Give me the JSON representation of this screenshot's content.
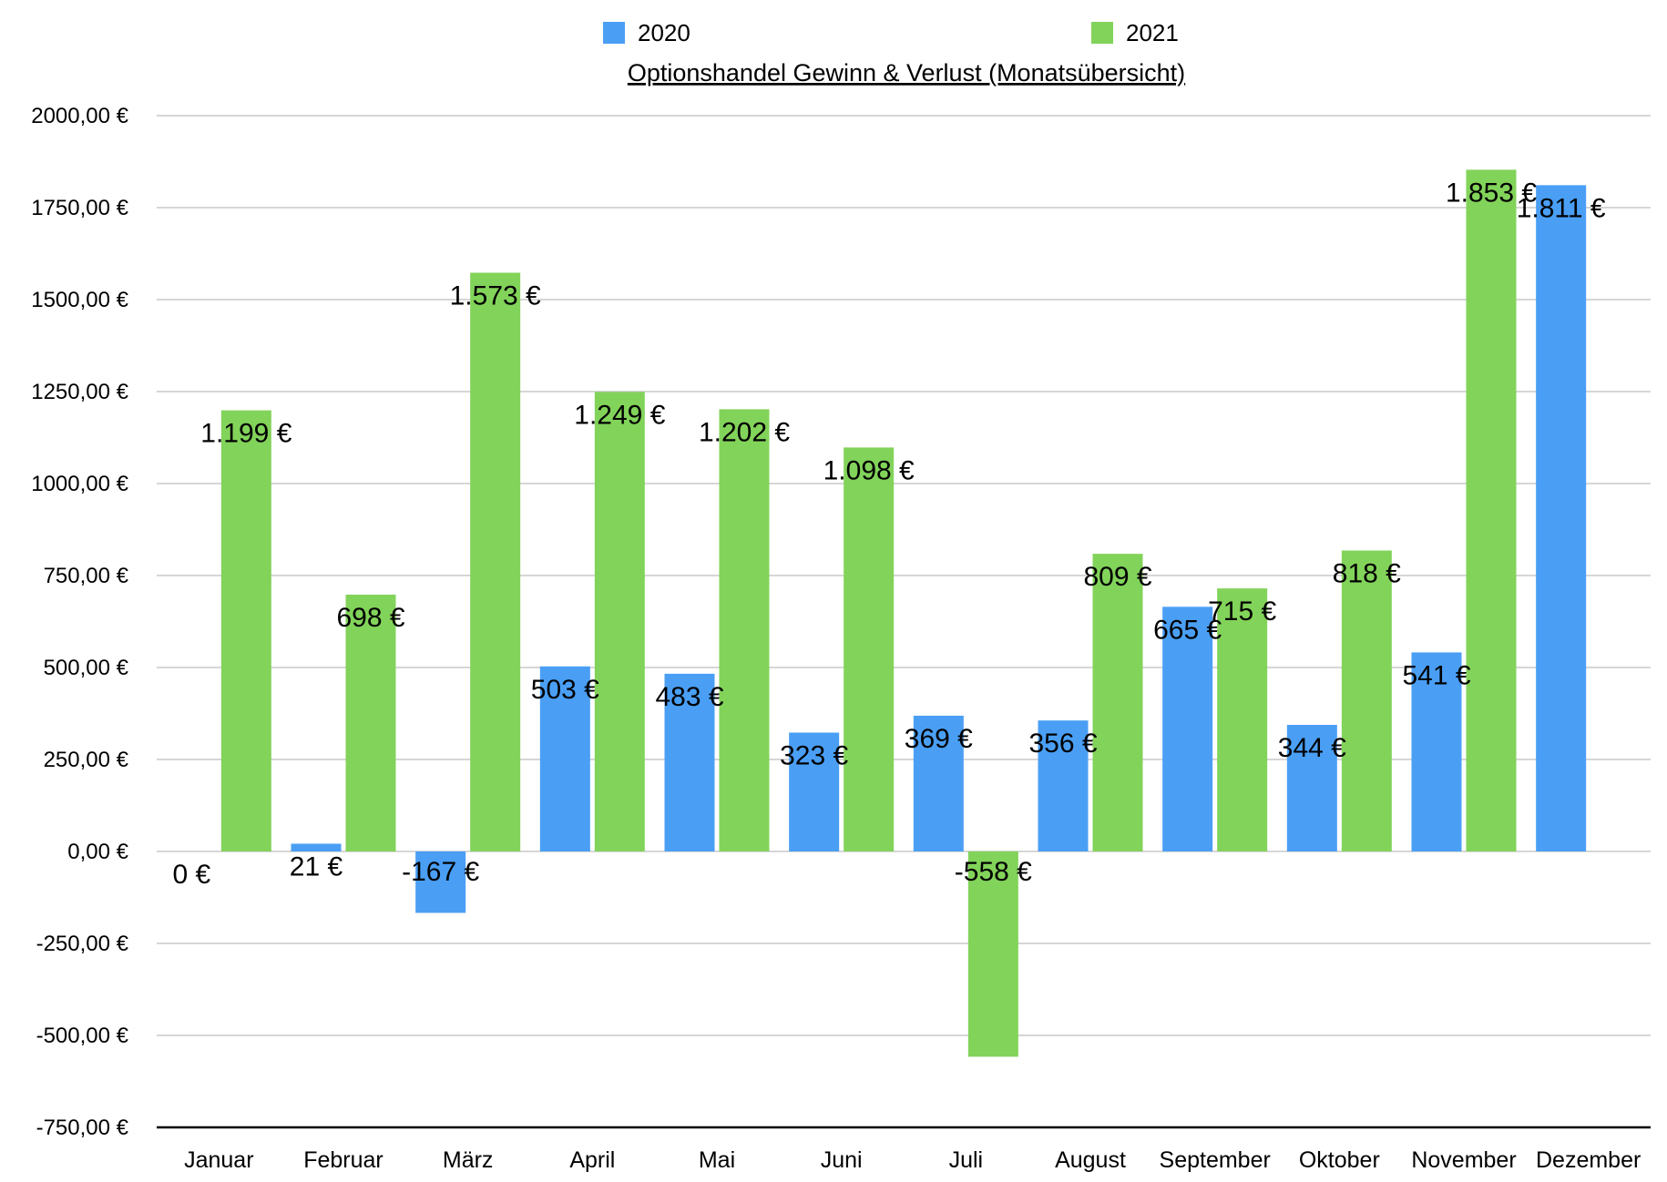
{
  "chart_data": {
    "type": "bar",
    "title": "Optionshandel Gewinn & Verlust (Monatsübersicht)",
    "xlabel": "",
    "ylabel": "",
    "ylim": [
      -750,
      2000
    ],
    "yticks": [
      2000,
      1750,
      1500,
      1250,
      1000,
      750,
      500,
      250,
      0,
      -250,
      -500,
      -750
    ],
    "ytick_labels": [
      "2000,00 €",
      "1750,00 €",
      "1500,00 €",
      "1250,00 €",
      "1000,00 €",
      "750,00 €",
      "500,00 €",
      "250,00 €",
      "0,00 €",
      "-250,00 €",
      "-500,00 €",
      "-750,00 €"
    ],
    "grid": true,
    "legend_position": "top",
    "categories": [
      "Januar",
      "Februar",
      "März",
      "April",
      "Mai",
      "Juni",
      "Juli",
      "August",
      "September",
      "Oktober",
      "November",
      "Dezember"
    ],
    "series": [
      {
        "name": "2020",
        "color": "#4a9ff5",
        "values": [
          0,
          21,
          -167,
          503,
          483,
          323,
          369,
          356,
          665,
          344,
          541,
          1811
        ],
        "labels": [
          "0 €",
          "21 €",
          "-167 €",
          "503 €",
          "483 €",
          "323 €",
          "369 €",
          "356 €",
          "665 €",
          "344 €",
          "541 €",
          "1.811 €"
        ]
      },
      {
        "name": "2021",
        "color": "#82d35a",
        "values": [
          1199,
          698,
          1573,
          1249,
          1202,
          1098,
          -558,
          809,
          715,
          818,
          1853,
          null
        ],
        "labels": [
          "1.199 €",
          "698 €",
          "1.573 €",
          "1.249 €",
          "1.202 €",
          "1.098 €",
          "-558 €",
          "809 €",
          "715 €",
          "818 €",
          "1.853 €",
          null
        ]
      }
    ]
  }
}
